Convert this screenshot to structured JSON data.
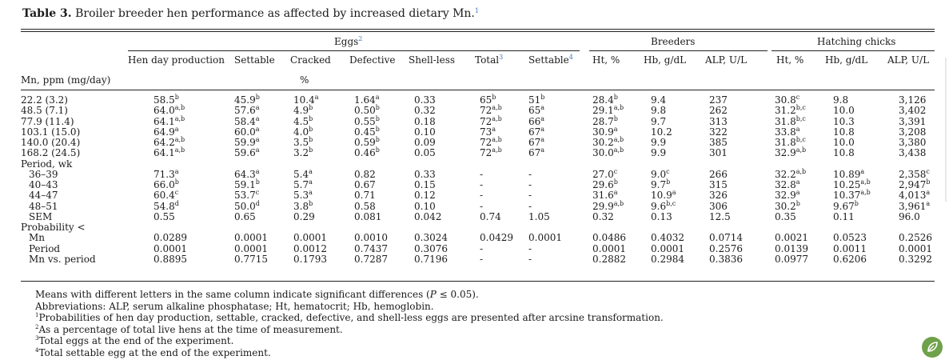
{
  "caption": {
    "label": "Table 3.",
    "text": " Broiler breeder hen performance as affected by increased dietary Mn.",
    "sup": "1"
  },
  "headers": {
    "groups": [
      {
        "text": "Eggs",
        "sup": "2"
      },
      {
        "text": "Breeders",
        "sup": ""
      },
      {
        "text": "Hatching chicks",
        "sup": ""
      }
    ],
    "columns": [
      {
        "text": "Hen day production",
        "sup": ""
      },
      {
        "text": "Settable",
        "sup": ""
      },
      {
        "text": "Cracked",
        "sup": ""
      },
      {
        "text": "Defective",
        "sup": ""
      },
      {
        "text": "Shell-less",
        "sup": ""
      },
      {
        "text": "Total",
        "sup": "3"
      },
      {
        "text": "Settable",
        "sup": "4"
      },
      {
        "text": "Ht, %",
        "sup": ""
      },
      {
        "text": "Hb, g/dL",
        "sup": ""
      },
      {
        "text": "ALP, U/L",
        "sup": ""
      },
      {
        "text": "Ht, %",
        "sup": ""
      },
      {
        "text": "Hb, g/dL",
        "sup": ""
      },
      {
        "text": "ALP, U/L",
        "sup": ""
      }
    ],
    "row_label": "Mn, ppm (mg/day)",
    "unit": "%"
  },
  "rows": [
    {
      "label": "22.2 (3.2)",
      "indent": false,
      "cells": [
        [
          "58.5",
          "b"
        ],
        [
          "45.9",
          "b"
        ],
        [
          "10.4",
          "a"
        ],
        [
          "1.64",
          "a"
        ],
        [
          "0.33",
          ""
        ],
        [
          "65",
          "b"
        ],
        [
          "51",
          "b"
        ],
        [
          "28.4",
          "b"
        ],
        [
          "9.4",
          ""
        ],
        [
          "237",
          ""
        ],
        [
          "30.8",
          "c"
        ],
        [
          "9.8",
          ""
        ],
        [
          "3,126",
          ""
        ]
      ]
    },
    {
      "label": "48.5 (7.1)",
      "indent": false,
      "cells": [
        [
          "64.0",
          "a,b"
        ],
        [
          "57.6",
          "a"
        ],
        [
          "4.9",
          "b"
        ],
        [
          "0.50",
          "b"
        ],
        [
          "0.32",
          ""
        ],
        [
          "72",
          "a,b"
        ],
        [
          "65",
          "a"
        ],
        [
          "29.1",
          "a,b"
        ],
        [
          "9.8",
          ""
        ],
        [
          "262",
          ""
        ],
        [
          "31.2",
          "b,c"
        ],
        [
          "10.0",
          ""
        ],
        [
          "3,402",
          ""
        ]
      ]
    },
    {
      "label": "77.9 (11.4)",
      "indent": false,
      "cells": [
        [
          "64.1",
          "a,b"
        ],
        [
          "58.4",
          "a"
        ],
        [
          "4.5",
          "b"
        ],
        [
          "0.55",
          "b"
        ],
        [
          "0.18",
          ""
        ],
        [
          "72",
          "a,b"
        ],
        [
          "66",
          "a"
        ],
        [
          "28.7",
          "b"
        ],
        [
          "9.7",
          ""
        ],
        [
          "313",
          ""
        ],
        [
          "31.8",
          "b,c"
        ],
        [
          "10.3",
          ""
        ],
        [
          "3,391",
          ""
        ]
      ]
    },
    {
      "label": "103.1 (15.0)",
      "indent": false,
      "cells": [
        [
          "64.9",
          "a"
        ],
        [
          "60.0",
          "a"
        ],
        [
          "4.0",
          "b"
        ],
        [
          "0.45",
          "b"
        ],
        [
          "0.10",
          ""
        ],
        [
          "73",
          "a"
        ],
        [
          "67",
          "a"
        ],
        [
          "30.9",
          "a"
        ],
        [
          "10.2",
          ""
        ],
        [
          "322",
          ""
        ],
        [
          "33.8",
          "a"
        ],
        [
          "10.8",
          ""
        ],
        [
          "3,208",
          ""
        ]
      ]
    },
    {
      "label": "140.0 (20.4)",
      "indent": false,
      "cells": [
        [
          "64.2",
          "a,b"
        ],
        [
          "59.9",
          "a"
        ],
        [
          "3.5",
          "b"
        ],
        [
          "0.59",
          "b"
        ],
        [
          "0.09",
          ""
        ],
        [
          "72",
          "a,b"
        ],
        [
          "67",
          "a"
        ],
        [
          "30.2",
          "a,b"
        ],
        [
          "9.9",
          ""
        ],
        [
          "385",
          ""
        ],
        [
          "31.8",
          "b,c"
        ],
        [
          "10.0",
          ""
        ],
        [
          "3,380",
          ""
        ]
      ]
    },
    {
      "label": "168.2 (24.5)",
      "indent": false,
      "cells": [
        [
          "64.1",
          "a,b"
        ],
        [
          "59.6",
          "a"
        ],
        [
          "3.2",
          "b"
        ],
        [
          "0.46",
          "b"
        ],
        [
          "0.05",
          ""
        ],
        [
          "72",
          "a,b"
        ],
        [
          "67",
          "a"
        ],
        [
          "30.0",
          "a,b"
        ],
        [
          "9.9",
          ""
        ],
        [
          "301",
          ""
        ],
        [
          "32.9",
          "a,b"
        ],
        [
          "10.8",
          ""
        ],
        [
          "3,438",
          ""
        ]
      ]
    },
    {
      "label": "Period, wk",
      "indent": false,
      "cells": []
    },
    {
      "label": "36–39",
      "indent": true,
      "cells": [
        [
          "71.3",
          "a"
        ],
        [
          "64.3",
          "a"
        ],
        [
          "5.4",
          "a"
        ],
        [
          "0.82",
          ""
        ],
        [
          "0.33",
          ""
        ],
        [
          "-",
          ""
        ],
        [
          "-",
          ""
        ],
        [
          "27.0",
          "c"
        ],
        [
          "9.0",
          "c"
        ],
        [
          "266",
          ""
        ],
        [
          "32.2",
          "a,b"
        ],
        [
          "10.89",
          "a"
        ],
        [
          "2,358",
          "c"
        ]
      ]
    },
    {
      "label": "40–43",
      "indent": true,
      "cells": [
        [
          "66.0",
          "b"
        ],
        [
          "59.1",
          "b"
        ],
        [
          "5.7",
          "a"
        ],
        [
          "0.67",
          ""
        ],
        [
          "0.15",
          ""
        ],
        [
          "-",
          ""
        ],
        [
          "-",
          ""
        ],
        [
          "29.6",
          "b"
        ],
        [
          "9.7",
          "b"
        ],
        [
          "315",
          ""
        ],
        [
          "32.8",
          "a"
        ],
        [
          "10.25",
          "a,b"
        ],
        [
          "2,947",
          "b"
        ]
      ]
    },
    {
      "label": "44–47",
      "indent": true,
      "cells": [
        [
          "60.4",
          "c"
        ],
        [
          "53.7",
          "c"
        ],
        [
          "5.3",
          "a"
        ],
        [
          "0.71",
          ""
        ],
        [
          "0.12",
          ""
        ],
        [
          "-",
          ""
        ],
        [
          "-",
          ""
        ],
        [
          "31.6",
          "a"
        ],
        [
          "10.9",
          "a"
        ],
        [
          "326",
          ""
        ],
        [
          "32.9",
          "a"
        ],
        [
          "10.37",
          "a,b"
        ],
        [
          "4,013",
          "a"
        ]
      ]
    },
    {
      "label": "48–51",
      "indent": true,
      "cells": [
        [
          "54.8",
          "d"
        ],
        [
          "50.0",
          "d"
        ],
        [
          "3.8",
          "b"
        ],
        [
          "0.58",
          ""
        ],
        [
          "0.10",
          ""
        ],
        [
          "-",
          ""
        ],
        [
          "-",
          ""
        ],
        [
          "29.9",
          "a,b"
        ],
        [
          "9.6",
          "b,c"
        ],
        [
          "306",
          ""
        ],
        [
          "30.2",
          "b"
        ],
        [
          "9.67",
          "b"
        ],
        [
          "3,961",
          "a"
        ]
      ]
    },
    {
      "label": "SEM",
      "indent": true,
      "cells": [
        [
          "0.55",
          ""
        ],
        [
          "0.65",
          ""
        ],
        [
          "0.29",
          ""
        ],
        [
          "0.081",
          ""
        ],
        [
          "0.042",
          ""
        ],
        [
          "0.74",
          ""
        ],
        [
          "1.05",
          ""
        ],
        [
          "0.32",
          ""
        ],
        [
          "0.13",
          ""
        ],
        [
          "12.5",
          ""
        ],
        [
          "0.35",
          ""
        ],
        [
          "0.11",
          ""
        ],
        [
          "96.0",
          ""
        ]
      ]
    },
    {
      "label": "Probability <",
      "indent": false,
      "cells": []
    },
    {
      "label": "Mn",
      "indent": true,
      "cells": [
        [
          "0.0289",
          ""
        ],
        [
          "0.0001",
          ""
        ],
        [
          "0.0001",
          ""
        ],
        [
          "0.0010",
          ""
        ],
        [
          "0.3024",
          ""
        ],
        [
          "0.0429",
          ""
        ],
        [
          "0.0001",
          ""
        ],
        [
          "0.0486",
          ""
        ],
        [
          "0.4032",
          ""
        ],
        [
          "0.0714",
          ""
        ],
        [
          "0.0021",
          ""
        ],
        [
          "0.0523",
          ""
        ],
        [
          "0.2526",
          ""
        ]
      ]
    },
    {
      "label": "Period",
      "indent": true,
      "cells": [
        [
          "0.0001",
          ""
        ],
        [
          "0.0001",
          ""
        ],
        [
          "0.0012",
          ""
        ],
        [
          "0.7437",
          ""
        ],
        [
          "0.3076",
          ""
        ],
        [
          "-",
          ""
        ],
        [
          "-",
          ""
        ],
        [
          "0.0001",
          ""
        ],
        [
          "0.0001",
          ""
        ],
        [
          "0.2576",
          ""
        ],
        [
          "0.0139",
          ""
        ],
        [
          "0.0011",
          ""
        ],
        [
          "0.0001",
          ""
        ]
      ]
    },
    {
      "label": "Mn vs. period",
      "indent": true,
      "cells": [
        [
          "0.8895",
          ""
        ],
        [
          "0.7715",
          ""
        ],
        [
          "0.1793",
          ""
        ],
        [
          "0.7287",
          ""
        ],
        [
          "0.7196",
          ""
        ],
        [
          "-",
          ""
        ],
        [
          "-",
          ""
        ],
        [
          "0.2882",
          ""
        ],
        [
          "0.2984",
          ""
        ],
        [
          "0.3836",
          ""
        ],
        [
          "0.0977",
          ""
        ],
        [
          "0.6206",
          ""
        ],
        [
          "0.3292",
          ""
        ]
      ]
    }
  ],
  "footnotes": [
    {
      "sup": "",
      "pre": "Means with different letters in the same column indicate significant differences (",
      "math": "P",
      "post": " ≤ 0.05)."
    },
    {
      "sup": "",
      "pre": "Abbreviations: ALP, serum alkaline phosphatase; Ht, hematocrit; Hb, hemoglobin.",
      "math": "",
      "post": ""
    },
    {
      "sup": "1",
      "pre": "Probabilities of hen day production, settable, cracked, defective, and shell-less eggs are presented after arcsine transformation.",
      "math": "",
      "post": ""
    },
    {
      "sup": "2",
      "pre": "As a percentage of total live hens at the time of measurement.",
      "math": "",
      "post": ""
    },
    {
      "sup": "3",
      "pre": "Total eggs at the end of the experiment.",
      "math": "",
      "post": ""
    },
    {
      "sup": "4",
      "pre": "Total settable egg at the end of the experiment.",
      "math": "",
      "post": ""
    }
  ],
  "colors": {
    "link_sup": "#3a7bbf",
    "logo": "#6ea14a"
  },
  "icons": {
    "logo": "leaf-logo-icon"
  }
}
